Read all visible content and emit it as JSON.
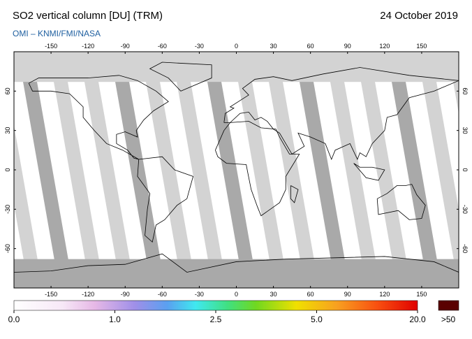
{
  "header": {
    "title": "SO2 vertical column [DU] (TRM)",
    "date": "24 October 2019",
    "source": "OMI – KNMI/FMI/NASA"
  },
  "map": {
    "lon_ticks": [
      -150,
      -120,
      -90,
      -60,
      -30,
      0,
      30,
      60,
      90,
      120,
      150
    ],
    "lat_ticks": [
      60,
      30,
      0,
      -30,
      -60
    ]
  },
  "colorbar": {
    "labels": [
      "0.0",
      "1.0",
      "2.5",
      "5.0",
      "20.0"
    ],
    "overflow_label": ">50"
  }
}
